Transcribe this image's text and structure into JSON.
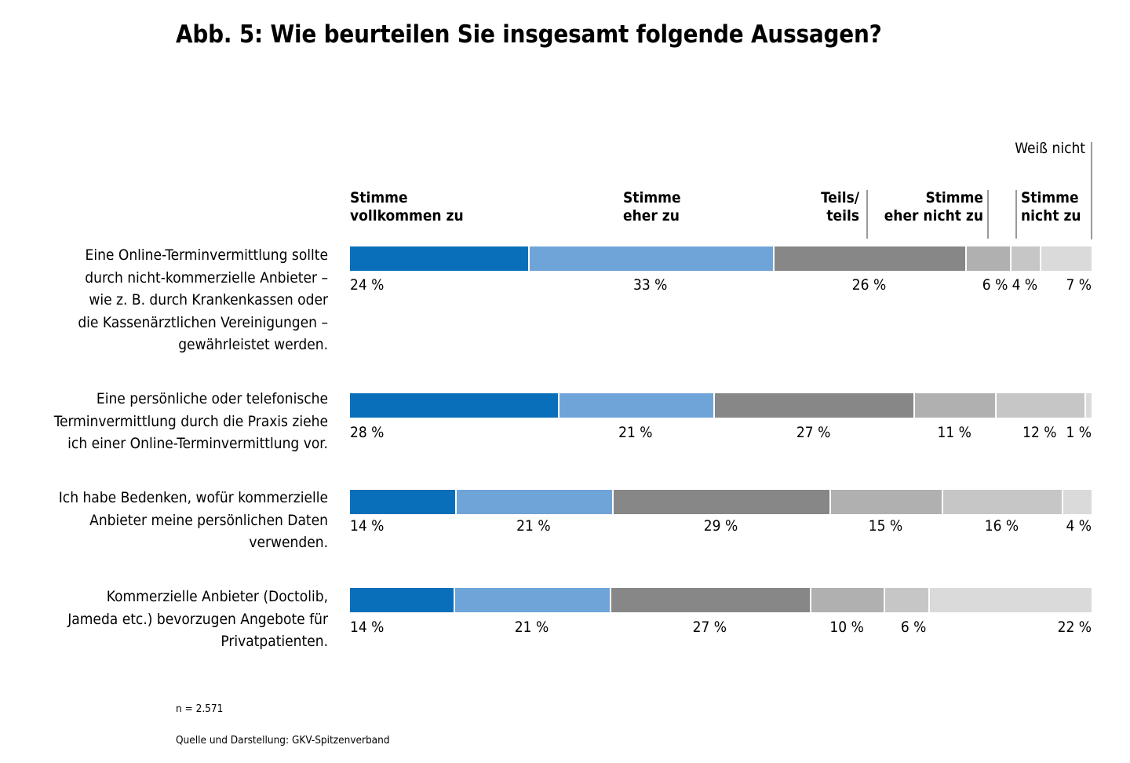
{
  "title": "Abb. 5: Wie beurteilen Sie insgesamt folgende Aussagen?",
  "footer": {
    "sample": "n = 2.571",
    "source": "Quelle und Darstellung: GKV-Spitzenverband"
  },
  "chart_data": {
    "type": "bar",
    "stacked": true,
    "orientation": "horizontal",
    "unit": "%",
    "categories": [
      "Eine Online-Terminvermittlung sollte durch nicht-kommerzielle Anbieter – wie z. B. durch Krankenkassen oder die Kassenärztlichen Vereinigungen – gewährleistet werden.",
      "Eine persönliche oder telefonische Terminvermittlung durch die Praxis ziehe ich einer Online-Terminvermittlung vor.",
      "Ich habe Bedenken, wofür kommerzielle Anbieter meine persönlichen Daten verwenden.",
      "Kommerzielle Anbieter (Doctolib, Jameda etc.) bevorzugen Angebote für Privatpatienten."
    ],
    "category_lines": [
      [
        "Eine Online-Terminvermittlung sollte",
        "durch nicht-kommerzielle Anbieter –",
        "wie z. B. durch Krankenkassen oder",
        "die Kassenärztlichen Vereinigungen –",
        "gewährleistet werden."
      ],
      [
        "Eine persönliche oder telefonische",
        "Terminvermittlung durch die Praxis ziehe",
        "ich einer Online-Terminvermittlung vor."
      ],
      [
        "Ich habe Bedenken, wofür kommerzielle",
        "Anbieter meine persönlichen Daten",
        "verwenden."
      ],
      [
        "Kommerzielle Anbieter (Doctolib,",
        "Jameda etc.) bevorzugen Angebote für",
        "Privatpatienten."
      ]
    ],
    "series": [
      {
        "name": "Stimme vollkommen zu",
        "color": "#0a6fba",
        "values": [
          24,
          28,
          14,
          14
        ]
      },
      {
        "name": "Stimme eher zu",
        "color": "#6fa4d8",
        "values": [
          33,
          21,
          21,
          21
        ]
      },
      {
        "name": "Teils/ teils",
        "color": "#878787",
        "values": [
          26,
          27,
          29,
          27
        ]
      },
      {
        "name": "Stimme eher nicht zu",
        "color": "#b0b0b0",
        "values": [
          6,
          11,
          15,
          10
        ]
      },
      {
        "name": "Stimme nicht zu",
        "color": "#c6c6c6",
        "values": [
          4,
          12,
          16,
          6
        ]
      },
      {
        "name": "Weiß nicht",
        "color": "#dadada",
        "values": [
          7,
          1,
          4,
          22
        ]
      }
    ],
    "legend_headers": [
      "Stimme\nvollkommen zu",
      "Stimme\neher zu",
      "Teils/\nteils",
      "Stimme\neher nicht zu",
      "Stimme\nnicht zu",
      "Weiß nicht"
    ],
    "xlim": [
      0,
      100
    ],
    "grid": false,
    "legend_position": "top"
  }
}
